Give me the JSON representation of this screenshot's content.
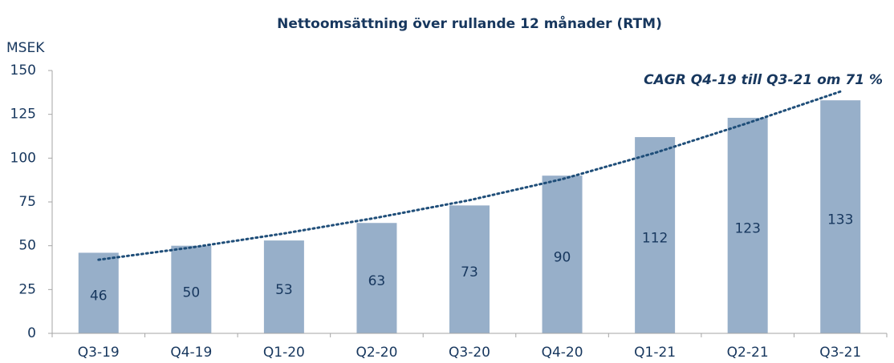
{
  "chart_data": {
    "type": "bar",
    "title": "Nettoomsättning över rullande 12 månader (RTM)",
    "y_label": "MSEK",
    "annotation": "CAGR Q4-19 till Q3-21 om 71 %",
    "categories": [
      "Q3-19",
      "Q4-19",
      "Q1-20",
      "Q2-20",
      "Q3-20",
      "Q4-20",
      "Q1-21",
      "Q2-21",
      "Q3-21"
    ],
    "values": [
      46,
      50,
      53,
      63,
      73,
      90,
      112,
      123,
      133
    ],
    "color": "#97afc9",
    "trendline": {
      "color": "#1f4e79",
      "values": [
        42,
        49,
        57,
        66,
        76,
        88,
        103,
        120,
        138
      ]
    },
    "ylim": [
      0,
      150
    ],
    "yticks": [
      0,
      25,
      50,
      75,
      100,
      125,
      150
    ]
  }
}
